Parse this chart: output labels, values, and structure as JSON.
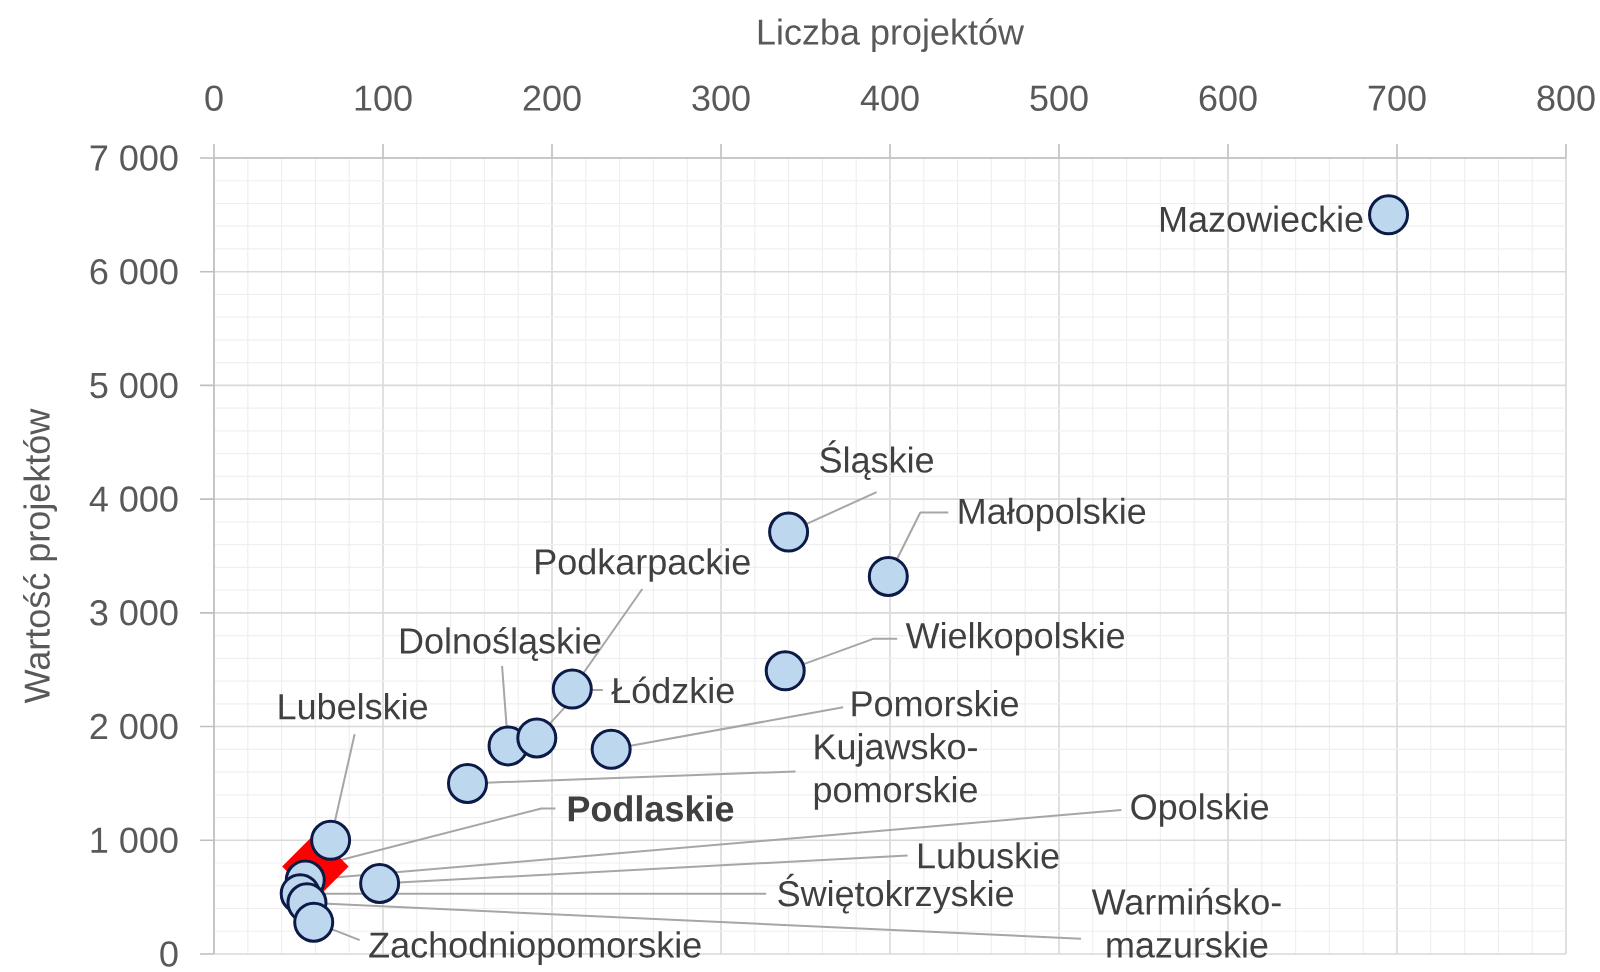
{
  "chart_data": {
    "type": "scatter",
    "xlabel": "Liczba projektów",
    "ylabel": "Wartość projektów",
    "xlim": [
      0,
      800
    ],
    "xticks": [
      0,
      100,
      200,
      300,
      400,
      500,
      600,
      700,
      800
    ],
    "ylim": [
      0,
      7000
    ],
    "yticks": [
      0,
      {
        "value": 1000,
        "label": "1 000"
      },
      {
        "value": 2000,
        "label": "2 000"
      },
      {
        "value": 3000,
        "label": "3 000"
      },
      {
        "value": 4000,
        "label": "4 000"
      },
      {
        "value": 5000,
        "label": "5 000"
      },
      {
        "value": 6000,
        "label": "6 000"
      },
      {
        "value": 7000,
        "label": "7 000"
      }
    ],
    "grid": true,
    "marker": "circle",
    "series": [
      {
        "color": "#ff0000",
        "marker": "diamond",
        "x": [
          60
        ],
        "values": [
          770
        ],
        "value_labels": [
          "**Podlaskie**"
        ]
      },
      {
        "color": "#bdd7ee",
        "x": [
          695,
          340,
          399,
          338,
          212,
          174,
          191,
          235,
          150,
          69,
          54,
          98,
          51,
          55,
          59
        ],
        "values": [
          6500,
          3710,
          3320,
          2490,
          2330,
          1830,
          1900,
          1800,
          1500,
          1000,
          650,
          620,
          530,
          450,
          280
        ],
        "value_labels": [
          "Mazowieckie",
          "Śląskie",
          "Małopolskie",
          "Wielkopolskie",
          "Podkarpackie",
          "Dolnośląskie",
          "Łódzkie",
          "Pomorskie",
          "Kujawsko-pomorskie",
          "Lubelskie",
          "Opolskie",
          "Lubuskie",
          "Świętokrzyskie",
          "Warmińsko-mazurskie",
          "Zachodniopomorskie"
        ]
      }
    ]
  }
}
